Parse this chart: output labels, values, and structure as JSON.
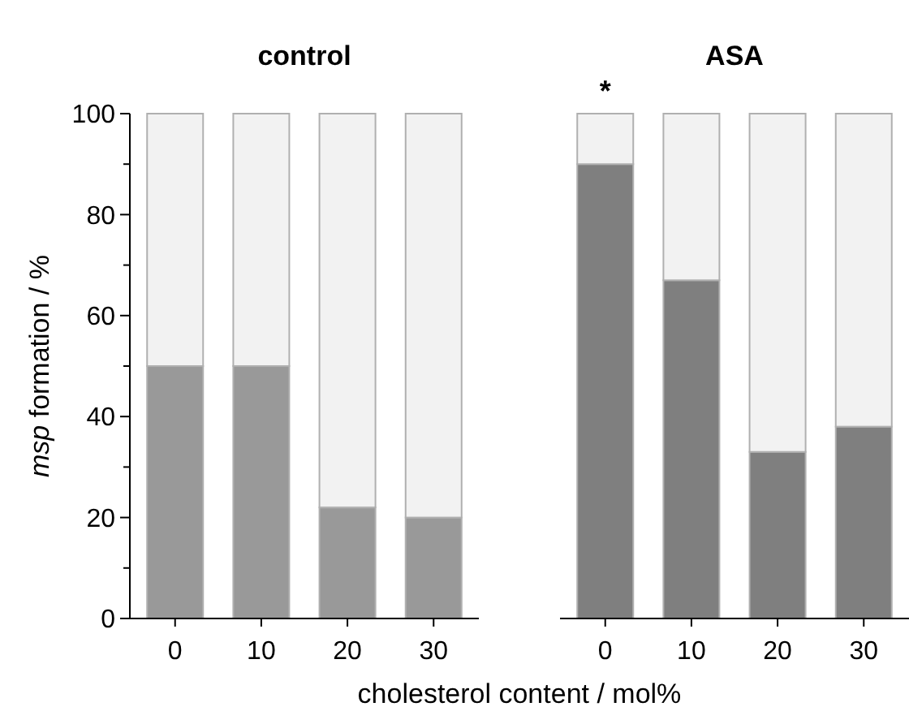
{
  "chart_data": [
    {
      "type": "bar",
      "title": "control",
      "categories": [
        "0",
        "10",
        "20",
        "30"
      ],
      "stacked": true,
      "ylabel": "msp formation / %",
      "xlabel": "cholesterol content / mol%",
      "ylim": [
        0,
        100
      ],
      "yticks": [
        0,
        {
          "value": 10,
          "label": null
        },
        20,
        {
          "value": 30,
          "label": null
        },
        40,
        {
          "value": 50,
          "label": null
        },
        60,
        {
          "value": 70,
          "label": null
        },
        80,
        {
          "value": 90,
          "label": null
        },
        100
      ],
      "series": [
        {
          "color": "#999999",
          "values": [
            50,
            50,
            22,
            20
          ]
        },
        {
          "color": "#f2f2f2",
          "values": [
            50,
            50,
            78,
            80
          ]
        }
      ]
    },
    {
      "type": "bar",
      "title": "ASA",
      "categories": [
        "0",
        "10",
        "20",
        "30"
      ],
      "stacked": true,
      "tick_labels": "x",
      "ylim": [
        0,
        100
      ],
      "annotations": [
        {
          "text": "*",
          "x": "0",
          "y": 100
        }
      ],
      "series": [
        {
          "color": "#7f7f7f",
          "values": [
            90,
            67,
            33,
            38
          ]
        },
        {
          "color": "#f2f2f2",
          "values": [
            10,
            33,
            67,
            62
          ]
        }
      ]
    }
  ]
}
